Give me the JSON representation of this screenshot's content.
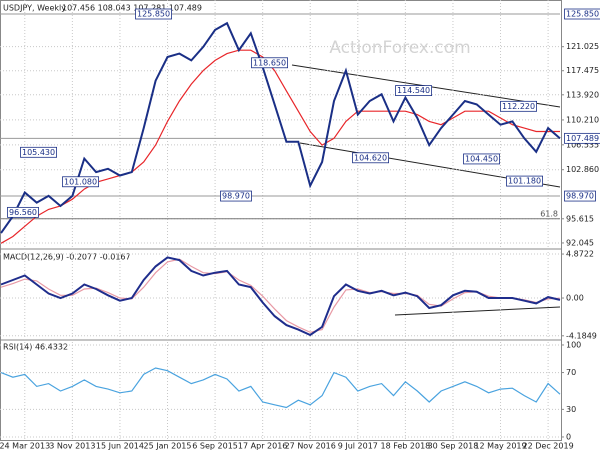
{
  "chart_data": [
    {
      "type": "line",
      "title": "USDJPY, Weekly",
      "subtitle": "107.456 108.043 107.281 107.489",
      "watermark": "ActionForex.com",
      "ylim": [
        91.3,
        127.18
      ],
      "yticks": [
        {
          "value": 121.025,
          "label": "121.025"
        },
        {
          "value": 117.475,
          "label": "117.475"
        },
        {
          "value": 113.92,
          "label": "113.920"
        },
        {
          "value": 110.21,
          "label": "110.210"
        },
        {
          "value": 106.535,
          "label": "106.535"
        },
        {
          "value": 102.86,
          "label": "102.860"
        },
        {
          "value": 95.615,
          "label": "95.615"
        },
        {
          "value": 92.045,
          "label": "92.045"
        }
      ],
      "highlight_levels": [
        {
          "value": 125.85,
          "label": "125.850"
        },
        {
          "value": 107.489,
          "label": "107.489"
        },
        {
          "value": 98.97,
          "label": "98.970"
        }
      ],
      "fib_label": "61.8",
      "annotations": [
        {
          "value": 125.85,
          "label": "125.850"
        },
        {
          "value": 118.65,
          "label": "118.650"
        },
        {
          "value": 114.54,
          "label": "114.540"
        },
        {
          "value": 112.22,
          "label": "112.220"
        },
        {
          "value": 105.43,
          "label": "105.430"
        },
        {
          "value": 101.08,
          "label": "101.080"
        },
        {
          "value": 104.62,
          "label": "104.620"
        },
        {
          "value": 104.45,
          "label": "104.450"
        },
        {
          "value": 101.18,
          "label": "101.180"
        },
        {
          "value": 98.97,
          "label": "98.970"
        },
        {
          "value": 96.56,
          "label": "96.560"
        }
      ],
      "series": [
        {
          "name": "USDJPY",
          "color": "#1a2f86",
          "values": [
            93.5,
            96,
            99.5,
            98,
            99,
            97.5,
            99,
            104.5,
            102.5,
            103,
            102,
            102.5,
            109,
            116,
            119.5,
            120,
            119,
            121,
            123.5,
            124.5,
            120.5,
            123,
            118,
            112.5,
            107,
            107,
            100.5,
            104,
            113,
            117.5,
            111,
            113,
            114,
            110,
            113.5,
            110.5,
            106.5,
            109,
            111,
            113,
            112.5,
            111,
            109.5,
            110,
            107.5,
            105.5,
            109,
            107.489
          ]
        },
        {
          "name": "MA",
          "color": "#e8262a",
          "values": [
            92,
            93,
            94.5,
            96,
            97,
            97.5,
            98.5,
            100,
            101,
            101.5,
            102,
            102.5,
            104,
            106.5,
            110,
            113,
            115.5,
            117.5,
            119,
            120,
            120.5,
            120.5,
            119.5,
            117.5,
            114.5,
            111.5,
            108.5,
            106.5,
            107.5,
            110,
            111.5,
            111.5,
            111.5,
            111.5,
            111.5,
            111,
            110,
            109.5,
            110.5,
            111.5,
            111.5,
            111.5,
            110.5,
            109.5,
            109,
            108.5,
            108.5,
            108.5
          ]
        }
      ]
    },
    {
      "type": "line",
      "title": "MACD(12,26,9) -0.2077 -0.0167",
      "ylim": [
        -4.65,
        5.32
      ],
      "yticks": [
        {
          "value": 4.8722,
          "label": "4.8722"
        },
        {
          "value": 0,
          "label": "0.00"
        },
        {
          "value": -4.1849,
          "label": "-4.1849"
        }
      ],
      "series": [
        {
          "name": "MACD",
          "color": "#1f2d8c",
          "values": [
            1.5,
            2,
            2.5,
            1.5,
            0.5,
            0,
            0.5,
            1.5,
            1,
            0.3,
            -0.3,
            0,
            2,
            3.5,
            4.5,
            4.2,
            3,
            2.5,
            2.8,
            3,
            1.5,
            1.2,
            -0.5,
            -2,
            -3,
            -3.5,
            -4.1,
            -3.2,
            0.2,
            1.5,
            0.8,
            0.5,
            0.8,
            0.3,
            0.6,
            0.2,
            -1.1,
            -0.8,
            0.3,
            0.8,
            0.7,
            0,
            0,
            0,
            -0.3,
            -0.6,
            0.1,
            -0.2077
          ]
        },
        {
          "name": "Signal",
          "color": "#e89aa5",
          "values": [
            1.2,
            1.6,
            2.1,
            1.9,
            1,
            0.3,
            0.3,
            1,
            1.1,
            0.6,
            0,
            -0.1,
            1.2,
            2.8,
            4,
            4.3,
            3.5,
            2.8,
            2.7,
            2.9,
            2,
            1.4,
            0.2,
            -1.2,
            -2.5,
            -3.2,
            -3.8,
            -3.5,
            -1,
            0.9,
            1,
            0.6,
            0.7,
            0.5,
            0.5,
            0.3,
            -0.7,
            -0.9,
            -0.1,
            0.6,
            0.7,
            0.2,
            0,
            0,
            -0.2,
            -0.5,
            -0.1,
            -0.0167
          ]
        }
      ]
    },
    {
      "type": "line",
      "title": "RSI(14) 46.4332",
      "ylim": [
        -3.3,
        105.4
      ],
      "yticks": [
        100,
        70,
        30,
        0
      ],
      "categories": [
        null,
        null,
        "24 Mar 2013",
        null,
        null,
        null,
        "3 Nov 2013",
        null,
        null,
        null,
        "15 Jun 2014",
        null,
        null,
        null,
        "25 Jan 2015",
        null,
        null,
        null,
        "6 Sep 2015",
        null,
        null,
        null,
        "17 Apr 2016",
        null,
        null,
        null,
        "27 Nov 2016",
        null,
        null,
        null,
        "9 Jul 2017",
        null,
        null,
        null,
        "18 Feb 2018",
        null,
        null,
        null,
        "30 Sep 2018",
        null,
        null,
        null,
        "12 May 2019",
        null,
        null,
        null,
        "22 Dec 2019",
        null
      ],
      "series": [
        {
          "name": "RSI",
          "color": "#4aa3df",
          "values": [
            70,
            65,
            68,
            55,
            58,
            50,
            55,
            62,
            55,
            52,
            48,
            50,
            68,
            75,
            72,
            65,
            58,
            62,
            68,
            63,
            50,
            55,
            38,
            35,
            32,
            40,
            35,
            45,
            70,
            65,
            50,
            55,
            58,
            45,
            60,
            50,
            38,
            50,
            55,
            60,
            55,
            48,
            52,
            53,
            45,
            38,
            58,
            46.4332
          ]
        }
      ]
    }
  ]
}
